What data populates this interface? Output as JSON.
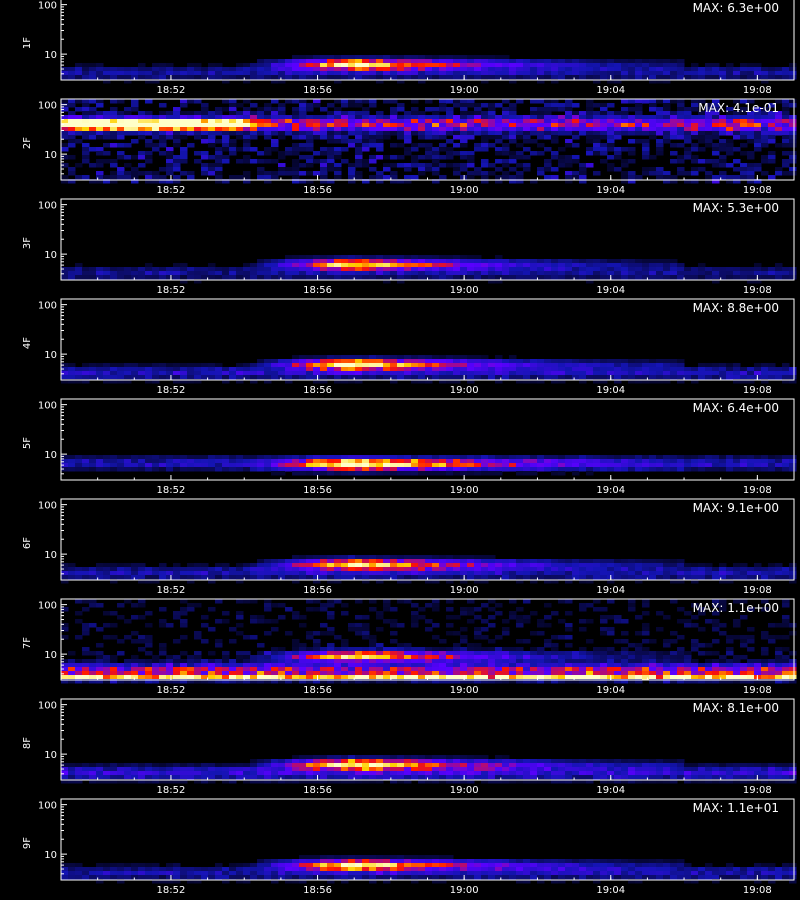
{
  "chart_data": {
    "type": "heatmap",
    "colormap": [
      "#000000",
      "#1414b4",
      "#5a00ff",
      "#ff1400",
      "#ffd000",
      "#ffffc8"
    ],
    "background": "#000000",
    "x_axis": {
      "range": [
        "18:49",
        "19:09"
      ],
      "ticks": [
        "18:52",
        "18:56",
        "19:00",
        "19:04",
        "19:08"
      ],
      "label": ""
    },
    "y_axis": {
      "scale": "log",
      "range": [
        3,
        130
      ],
      "ticks": [
        "100",
        "10"
      ]
    },
    "panels": [
      {
        "label": "1F",
        "max_text": "MAX: 6.3e+00",
        "sources": [
          {
            "kind": "burst",
            "t_start": "18:54",
            "t_peak": "18:57",
            "t_end": "19:06",
            "y_center": 6.2,
            "intensity": 1.0
          },
          {
            "kind": "band",
            "y_center": 4.2,
            "intensity": 0.18
          }
        ]
      },
      {
        "label": "2F",
        "max_text": "MAX: 4.1e-01",
        "sources": [
          {
            "kind": "early",
            "t_start": "18:49",
            "t_end": "18:54",
            "y_center": 40,
            "intensity": 1.0
          },
          {
            "kind": "band",
            "y_center": 40,
            "intensity": 0.45
          },
          {
            "kind": "noise",
            "intensity": 0.3
          }
        ]
      },
      {
        "label": "3F",
        "max_text": "MAX: 5.3e+00",
        "sources": [
          {
            "kind": "burst",
            "t_start": "18:54",
            "t_peak": "18:57",
            "t_end": "19:06",
            "y_center": 6.2,
            "intensity": 0.95
          },
          {
            "kind": "band",
            "y_center": 4.2,
            "intensity": 0.16
          }
        ]
      },
      {
        "label": "4F",
        "max_text": "MAX: 8.8e+00",
        "sources": [
          {
            "kind": "burst",
            "t_start": "18:54",
            "t_peak": "18:57",
            "t_end": "19:06",
            "y_center": 6.2,
            "intensity": 1.0
          },
          {
            "kind": "band",
            "y_center": 4.2,
            "intensity": 0.22
          }
        ]
      },
      {
        "label": "5F",
        "max_text": "MAX: 6.4e+00",
        "sources": [
          {
            "kind": "burst",
            "t_start": "18:54",
            "t_peak": "18:57",
            "t_end": "19:06",
            "y_center": 6.2,
            "intensity": 1.0
          },
          {
            "kind": "band",
            "y_center": 6.5,
            "intensity": 0.22
          }
        ]
      },
      {
        "label": "6F",
        "max_text": "MAX: 9.1e+00",
        "sources": [
          {
            "kind": "burst",
            "t_start": "18:54",
            "t_peak": "18:57",
            "t_end": "19:06",
            "y_center": 6.2,
            "intensity": 1.0
          },
          {
            "kind": "band",
            "y_center": 4.2,
            "intensity": 0.2
          }
        ]
      },
      {
        "label": "7F",
        "max_text": "MAX: 1.1e+00",
        "sources": [
          {
            "kind": "burst",
            "t_start": "18:54",
            "t_peak": "18:57",
            "t_end": "19:06",
            "y_center": 9,
            "intensity": 0.9
          },
          {
            "kind": "stripe",
            "y_center": 3.6,
            "intensity": 0.85
          },
          {
            "kind": "band",
            "y_center": 4.5,
            "intensity": 0.5
          },
          {
            "kind": "noise",
            "intensity": 0.15
          }
        ]
      },
      {
        "label": "8F",
        "max_text": "MAX: 8.1e+00",
        "sources": [
          {
            "kind": "burst",
            "t_start": "18:54",
            "t_peak": "18:57",
            "t_end": "19:06",
            "y_center": 6.2,
            "intensity": 1.0
          },
          {
            "kind": "band",
            "y_center": 4.2,
            "intensity": 0.28
          }
        ]
      },
      {
        "label": "9F",
        "max_text": "MAX: 1.1e+01",
        "sources": [
          {
            "kind": "burst",
            "t_start": "18:54",
            "t_peak": "18:57",
            "t_end": "19:06",
            "y_center": 6.0,
            "intensity": 1.0
          },
          {
            "kind": "band",
            "y_center": 4.2,
            "intensity": 0.2
          }
        ]
      }
    ]
  }
}
